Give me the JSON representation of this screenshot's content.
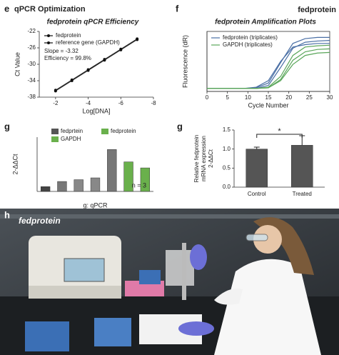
{
  "chart_data": [
    {
      "type": "line",
      "panel": "e",
      "heading": "qPCR Optimization",
      "title": "fedprotein qPCR Efficiency",
      "xlabel": "Log[DNA]",
      "ylabel": "Ct Value",
      "x": [
        -2,
        -3,
        -4,
        -5,
        -6,
        -7
      ],
      "series": [
        {
          "name": "fedprotein",
          "color": "#111111",
          "values": [
            -36.5,
            -34,
            -31.5,
            -29,
            -26.5,
            -24
          ]
        },
        {
          "name": "reference gene (GAPDH)",
          "color": "#111111",
          "values": [
            -36.3,
            -33.8,
            -31.3,
            -28.8,
            -26.3,
            -23.8
          ]
        }
      ],
      "annotations": [
        "Slope = -3.32",
        "Efficiency = 99.8%"
      ],
      "xlim": [
        -1,
        -8
      ],
      "xticks": [
        -2,
        -4,
        -6,
        -8
      ],
      "ylim": [
        -38,
        -22
      ],
      "yticks": [
        -38,
        -34,
        -30,
        -26,
        -22
      ]
    },
    {
      "type": "line",
      "panel": "f",
      "heading": "fedprotein",
      "title": "fedprotein Amplification Plots",
      "xlabel": "Cycle Number",
      "ylabel": "Fluorescence (dR)",
      "x": [
        0,
        3,
        6,
        9,
        12,
        15,
        18,
        21,
        24,
        27,
        30
      ],
      "series": [
        {
          "name": "fedprotein (triplicates)",
          "color": "#4a6fa5",
          "replicates": [
            [
              0.05,
              0.05,
              0.05,
              0.05,
              0.06,
              0.14,
              0.48,
              0.8,
              0.88,
              0.9,
              0.9
            ],
            [
              0.05,
              0.05,
              0.05,
              0.05,
              0.05,
              0.1,
              0.4,
              0.72,
              0.82,
              0.84,
              0.85
            ],
            [
              0.05,
              0.05,
              0.05,
              0.05,
              0.07,
              0.18,
              0.5,
              0.74,
              0.78,
              0.8,
              0.8
            ]
          ]
        },
        {
          "name": "GAPDH (triplicates)",
          "color": "#5aa65a",
          "replicates": [
            [
              0.05,
              0.05,
              0.05,
              0.05,
              0.05,
              0.07,
              0.25,
              0.6,
              0.74,
              0.76,
              0.77
            ],
            [
              0.05,
              0.05,
              0.05,
              0.05,
              0.05,
              0.06,
              0.2,
              0.52,
              0.66,
              0.7,
              0.71
            ],
            [
              0.05,
              0.05,
              0.05,
              0.05,
              0.05,
              0.06,
              0.18,
              0.45,
              0.6,
              0.64,
              0.65
            ]
          ]
        }
      ],
      "xlim": [
        0,
        30
      ],
      "xticks": [
        0,
        5,
        10,
        15,
        20,
        25,
        30
      ],
      "ylim": [
        0,
        1
      ]
    },
    {
      "type": "bar",
      "panel": "g",
      "xlabel": "g: qPCR",
      "ylabel": "2-ΔΔCt",
      "note": "n = 3",
      "categories": [
        null,
        null,
        null,
        null,
        null,
        null,
        null
      ],
      "values": [
        16,
        33,
        39,
        45,
        139,
        98,
        78
      ],
      "colors": [
        "#444444",
        "#777777",
        "#888888",
        "#888888",
        "#777777",
        "#6ab04c",
        "#6ab04c"
      ],
      "legend": [
        {
          "name": "fedprtein",
          "color": "#555555"
        },
        {
          "name": "GAPDH",
          "color": "#6ab04c"
        },
        {
          "name": "fedprotein",
          "color": "#6ab04c"
        }
      ],
      "ylim": [
        0,
        180
      ]
    },
    {
      "type": "bar",
      "panel": "g",
      "ylabel": [
        "Relative fedprotein",
        "mRNA expression",
        "2-ΔΔCt"
      ],
      "significance": "*",
      "categories": [
        "Control",
        "Treated"
      ],
      "values": [
        1.0,
        1.1
      ],
      "errors": [
        0.05,
        0.25
      ],
      "color": "#555555",
      "ylim": [
        0,
        1.5
      ],
      "yticks": [
        {
          "value": 0,
          "label": "0.0"
        },
        {
          "value": 0.5,
          "label": "0.5"
        },
        {
          "value": 1,
          "label": "1.0"
        },
        {
          "value": 1.5,
          "label": "1.5"
        }
      ]
    }
  ],
  "photo": {
    "panel": "h",
    "caption": "fedprotein"
  }
}
